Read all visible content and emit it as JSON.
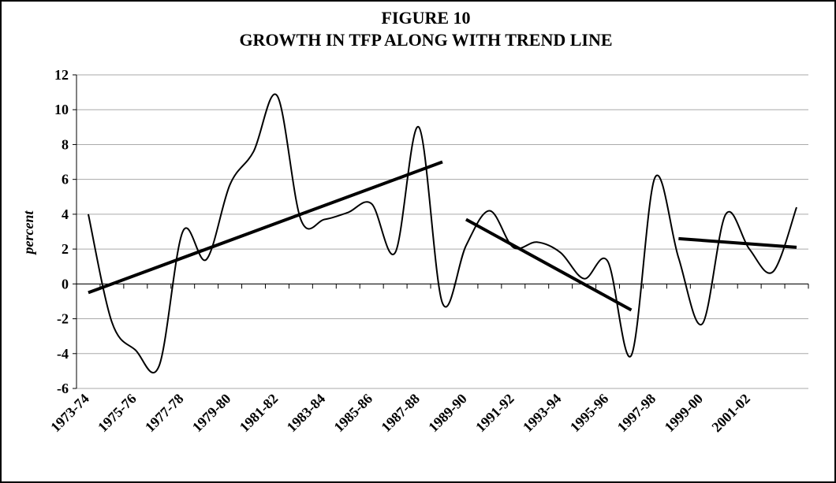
{
  "chart_data": {
    "type": "line",
    "title": "FIGURE 10",
    "subtitle": "GROWTH IN TFP ALONG WITH TREND LINE",
    "y_label": "percent",
    "categories": [
      "1973-74",
      null,
      "1975-76",
      null,
      "1977-78",
      null,
      "1979-80",
      null,
      "1981-82",
      null,
      "1983-84",
      null,
      "1985-86",
      null,
      "1987-88",
      null,
      "1989-90",
      null,
      "1991-92",
      null,
      "1993-94",
      null,
      "1995-96",
      null,
      "1997-98",
      null,
      "1999-00",
      null,
      "2001-02",
      null,
      null
    ],
    "series": [
      {
        "name": "TFP growth",
        "color": "#000000",
        "values": [
          4,
          -2.2,
          -3.8,
          -4.7,
          3.0,
          1.4,
          5.7,
          7.6,
          10.8,
          3.7,
          3.7,
          4.1,
          4.6,
          1.8,
          9.0,
          -1.1,
          2.2,
          4.2,
          2.1,
          2.4,
          1.8,
          0.3,
          1.3,
          -4.1,
          6.1,
          1.5,
          -2.3,
          4.0,
          2.0,
          0.7,
          4.4
        ]
      }
    ],
    "trend_lines": [
      {
        "x": [
          0,
          15
        ],
        "y": [
          -0.5,
          7.0
        ]
      },
      {
        "x": [
          16,
          23
        ],
        "y": [
          3.7,
          -1.5
        ]
      },
      {
        "x": [
          25,
          30
        ],
        "y": [
          2.6,
          2.1
        ]
      }
    ],
    "ylim": [
      -6,
      12
    ],
    "yticks": [
      -6,
      -4,
      -2,
      0,
      2,
      4,
      6,
      8,
      10,
      12
    ],
    "grid": true
  }
}
